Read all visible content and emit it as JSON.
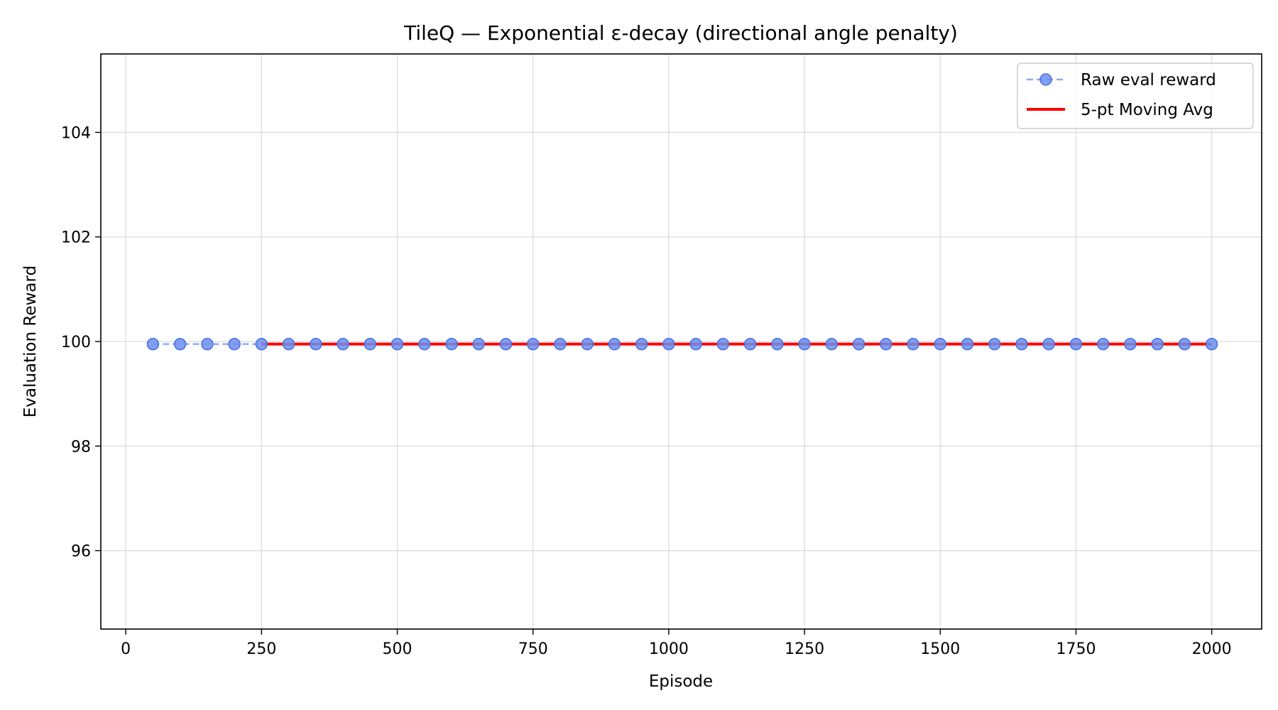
{
  "chart_data": {
    "type": "line",
    "title": "TileQ — Exponential ε-decay (directional angle penalty)",
    "xlabel": "Episode",
    "ylabel": "Evaluation Reward",
    "xlim": [
      -46,
      2092
    ],
    "ylim": [
      94.5,
      105.5
    ],
    "xticks": [
      0,
      250,
      500,
      750,
      1000,
      1250,
      1500,
      1750,
      2000
    ],
    "yticks": [
      96,
      98,
      100,
      102,
      104
    ],
    "grid": true,
    "legend_position": "top-right",
    "series": [
      {
        "name": "Raw eval reward",
        "style": "dashed-with-markers",
        "color": "#6b8ff0",
        "x": [
          50,
          100,
          150,
          200,
          250,
          300,
          350,
          400,
          450,
          500,
          550,
          600,
          650,
          700,
          750,
          800,
          850,
          900,
          950,
          1000,
          1050,
          1100,
          1150,
          1200,
          1250,
          1300,
          1350,
          1400,
          1450,
          1500,
          1550,
          1600,
          1650,
          1700,
          1750,
          1800,
          1850,
          1900,
          1950,
          2000
        ],
        "y": [
          99.95,
          99.95,
          99.95,
          99.95,
          99.95,
          99.95,
          99.95,
          99.95,
          99.95,
          99.95,
          99.95,
          99.95,
          99.95,
          99.95,
          99.95,
          99.95,
          99.95,
          99.95,
          99.95,
          99.95,
          99.95,
          99.95,
          99.95,
          99.95,
          99.95,
          99.95,
          99.95,
          99.95,
          99.95,
          99.95,
          99.95,
          99.95,
          99.95,
          99.95,
          99.95,
          99.95,
          99.95,
          99.95,
          99.95,
          99.95
        ]
      },
      {
        "name": "5-pt Moving Avg",
        "style": "solid",
        "color": "#ff0000",
        "x": [
          250,
          300,
          350,
          400,
          450,
          500,
          550,
          600,
          650,
          700,
          750,
          800,
          850,
          900,
          950,
          1000,
          1050,
          1100,
          1150,
          1200,
          1250,
          1300,
          1350,
          1400,
          1450,
          1500,
          1550,
          1600,
          1650,
          1700,
          1750,
          1800,
          1850,
          1900,
          1950,
          2000
        ],
        "y": [
          99.95,
          99.95,
          99.95,
          99.95,
          99.95,
          99.95,
          99.95,
          99.95,
          99.95,
          99.95,
          99.95,
          99.95,
          99.95,
          99.95,
          99.95,
          99.95,
          99.95,
          99.95,
          99.95,
          99.95,
          99.95,
          99.95,
          99.95,
          99.95,
          99.95,
          99.95,
          99.95,
          99.95,
          99.95,
          99.95,
          99.95,
          99.95,
          99.95,
          99.95,
          99.95,
          99.95
        ]
      }
    ]
  }
}
